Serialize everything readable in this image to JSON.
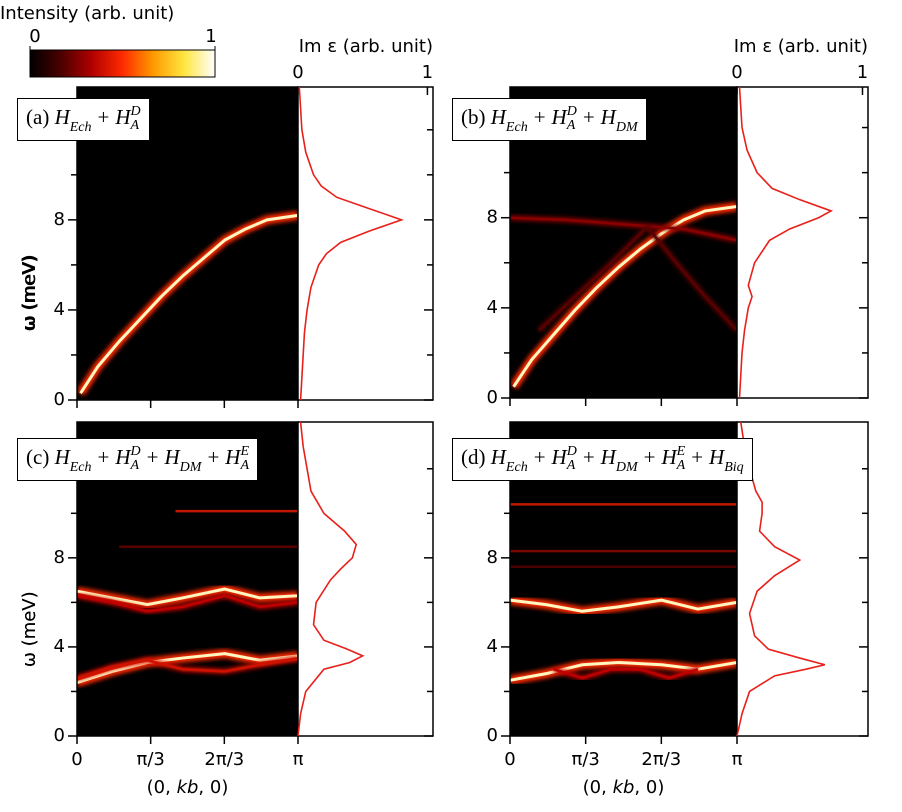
{
  "colorbar": {
    "label": "Intensity (arb. unit)",
    "ticks": [
      0,
      1
    ],
    "colors": [
      "#000000",
      "#4a0000",
      "#b00000",
      "#ff2a00",
      "#ff9a00",
      "#ffe640",
      "#ffffff"
    ]
  },
  "chart_data": [
    {
      "type": "dispersion",
      "label": {
        "tag": "(a)",
        "terms": [
          {
            "t": "H",
            "sub": "Ech"
          },
          "+",
          {
            "t": "H",
            "sub": "A",
            "sup": "D"
          }
        ]
      },
      "ylabel": "ω (meV)",
      "ylim": [
        0,
        13.9
      ],
      "yticks": [
        0,
        4,
        8
      ],
      "yminor": [
        2,
        6,
        10,
        12
      ],
      "xlim": [
        0,
        3.1416
      ],
      "xminor": [
        0,
        1.0472,
        2.0944,
        3.1416
      ],
      "background": "#000000",
      "core_color": "#fff6c0",
      "branches": [
        {
          "x": [
            0.05,
            0.3,
            0.6,
            0.9,
            1.2,
            1.5,
            1.8,
            2.1,
            2.4,
            2.7,
            3.1416
          ],
          "y": [
            0.3,
            1.5,
            2.6,
            3.6,
            4.6,
            5.5,
            6.3,
            7.1,
            7.6,
            8.0,
            8.2
          ],
          "color": "#ff2a00",
          "bright": true
        }
      ],
      "spectrum_label": "Im ε (arb. unit)",
      "spectrum_xlim": [
        0,
        1.02
      ],
      "spectrum_ticks": [
        0,
        1
      ],
      "spectrum_color": "#e8201a",
      "spectrum": {
        "omega": [
          0,
          1,
          2,
          3,
          4,
          5,
          6,
          6.5,
          7,
          7.5,
          8,
          8.5,
          9,
          9.5,
          10,
          11,
          12,
          13.9
        ],
        "values": [
          0.02,
          0.03,
          0.04,
          0.05,
          0.07,
          0.1,
          0.16,
          0.22,
          0.33,
          0.55,
          0.8,
          0.55,
          0.3,
          0.18,
          0.12,
          0.06,
          0.03,
          0.01
        ]
      }
    },
    {
      "type": "dispersion",
      "label": {
        "tag": "(b)",
        "terms": [
          {
            "t": "H",
            "sub": "Ech"
          },
          "+",
          {
            "t": "H",
            "sub": "A",
            "sup": "D"
          },
          "+",
          {
            "t": "H",
            "sub": "DM"
          }
        ]
      },
      "ylabel": "ω (meV)",
      "ylim": [
        0,
        13.8
      ],
      "yticks": [
        0,
        4,
        8
      ],
      "yminor": [
        2,
        6,
        10,
        12
      ],
      "xlim": [
        0,
        3.1416
      ],
      "xminor": [
        0,
        1.0472,
        2.0944,
        3.1416
      ],
      "background": "#000000",
      "core_color": "#fff6c0",
      "branches": [
        {
          "x": [
            0.05,
            0.3,
            0.6,
            0.9,
            1.2,
            1.5,
            1.8,
            2.1,
            2.4,
            2.7,
            3.1416
          ],
          "y": [
            0.5,
            1.7,
            2.8,
            3.9,
            4.9,
            5.8,
            6.6,
            7.3,
            7.9,
            8.3,
            8.5
          ],
          "color": "#ff2a00",
          "bright": true
        },
        {
          "x": [
            0,
            0.8,
            1.6,
            2.4,
            3.1416
          ],
          "y": [
            8.0,
            7.9,
            7.7,
            7.5,
            7.0
          ],
          "color": "#8a0000",
          "bright": false
        },
        {
          "x": [
            1.9,
            2.3,
            2.7,
            3.1416
          ],
          "y": [
            7.6,
            6.0,
            4.5,
            3.0
          ],
          "color": "#5a0000",
          "bright": false
        },
        {
          "x": [
            0.4,
            0.9,
            1.4,
            1.9
          ],
          "y": [
            3.0,
            4.5,
            6.0,
            7.6
          ],
          "color": "#5a0000",
          "bright": false
        }
      ],
      "spectrum_label": "Im ε (arb. unit)",
      "spectrum_xlim": [
        0,
        1.02
      ],
      "spectrum_ticks": [
        0,
        1
      ],
      "spectrum_color": "#e8201a",
      "spectrum": {
        "omega": [
          0,
          1,
          2,
          3,
          4,
          4.5,
          5,
          6,
          7,
          7.5,
          8,
          8.3,
          8.8,
          9.3,
          10,
          11,
          12,
          13.8
        ],
        "values": [
          0.02,
          0.03,
          0.04,
          0.06,
          0.09,
          0.12,
          0.09,
          0.14,
          0.26,
          0.42,
          0.65,
          0.75,
          0.5,
          0.28,
          0.16,
          0.08,
          0.04,
          0.02
        ]
      }
    },
    {
      "type": "dispersion",
      "label": {
        "tag": "(c)",
        "terms": [
          {
            "t": "H",
            "sub": "Ech"
          },
          "+",
          {
            "t": "H",
            "sub": "A",
            "sup": "D"
          },
          "+",
          {
            "t": "H",
            "sub": "DM"
          },
          "+",
          {
            "t": "H",
            "sub": "A",
            "sup": "E"
          }
        ]
      },
      "ylabel": "ω (meV)",
      "ylim": [
        0,
        14.1
      ],
      "yticks": [
        0,
        4,
        8
      ],
      "yminor": [
        2,
        6,
        10,
        12
      ],
      "xlim": [
        0,
        3.1416
      ],
      "xticks": [
        0,
        {
          "value": 1.0472,
          "label": "π/3"
        },
        {
          "value": 2.0944,
          "label": "2π/3"
        },
        {
          "value": 3.1416,
          "label": "π"
        }
      ],
      "xlabel": [
        "(0, ",
        "kb",
        ", 0)"
      ],
      "background": "#000000",
      "core_color": "#fff6c0",
      "branches": [
        {
          "x": [
            0,
            0.5,
            1.0,
            1.5,
            2.1,
            2.6,
            3.1416
          ],
          "y": [
            2.4,
            2.9,
            3.3,
            3.5,
            3.7,
            3.4,
            3.6
          ],
          "color": "#ff2a00",
          "bright": true
        },
        {
          "x": [
            0,
            0.5,
            1.0,
            1.5,
            2.1,
            2.6,
            3.1416
          ],
          "y": [
            2.6,
            3.1,
            3.4,
            3.0,
            2.9,
            3.2,
            3.5
          ],
          "color": "#d01000",
          "bright": false
        },
        {
          "x": [
            0,
            0.5,
            1.0,
            1.5,
            2.1,
            2.6,
            3.1416
          ],
          "y": [
            6.5,
            6.2,
            5.9,
            6.2,
            6.6,
            6.2,
            6.3
          ],
          "color": "#ff2a00",
          "bright": true
        },
        {
          "x": [
            0,
            0.5,
            1.0,
            1.5,
            2.1,
            2.6,
            3.1416
          ],
          "y": [
            6.3,
            6.0,
            5.6,
            5.8,
            6.3,
            5.8,
            6.0
          ],
          "color": "#c00000",
          "bright": false
        },
        {
          "x": [
            1.4,
            2.2,
            3.1416
          ],
          "y": [
            10.1,
            10.1,
            10.1
          ],
          "color": "#c01800",
          "bright": false
        },
        {
          "x": [
            0.6,
            1.8,
            3.1416
          ],
          "y": [
            8.5,
            8.5,
            8.5
          ],
          "color": "#5a0000",
          "bright": false
        }
      ],
      "spectrum_xlim": [
        0,
        1.02
      ],
      "spectrum_color": "#e8201a",
      "spectrum": {
        "omega": [
          0,
          0.5,
          1,
          2,
          3,
          3.3,
          3.6,
          3.9,
          4.3,
          5,
          6,
          7,
          7.5,
          8,
          8.6,
          9.2,
          10,
          11,
          12,
          13,
          14.1
        ],
        "values": [
          0,
          0.01,
          0.02,
          0.06,
          0.2,
          0.4,
          0.5,
          0.38,
          0.2,
          0.12,
          0.14,
          0.25,
          0.33,
          0.42,
          0.45,
          0.36,
          0.2,
          0.1,
          0.07,
          0.04,
          0.02
        ]
      }
    },
    {
      "type": "dispersion",
      "label": {
        "tag": "(d)",
        "terms": [
          {
            "t": "H",
            "sub": "Ech"
          },
          "+",
          {
            "t": "H",
            "sub": "A",
            "sup": "D"
          },
          "+",
          {
            "t": "H",
            "sub": "DM"
          },
          "+",
          {
            "t": "H",
            "sub": "A",
            "sup": "E"
          },
          "+",
          {
            "t": "H",
            "sub": "Biq"
          }
        ]
      },
      "ylabel": "ω (meV)",
      "ylim": [
        0,
        14.1
      ],
      "yticks": [
        0,
        4,
        8
      ],
      "yminor": [
        2,
        6,
        10,
        12
      ],
      "xlim": [
        0,
        3.1416
      ],
      "xticks": [
        0,
        {
          "value": 1.0472,
          "label": "π/3"
        },
        {
          "value": 2.0944,
          "label": "2π/3"
        },
        {
          "value": 3.1416,
          "label": "π"
        }
      ],
      "xlabel": [
        "(0, ",
        "kb",
        ", 0)"
      ],
      "background": "#000000",
      "core_color": "#fff6c0",
      "branches": [
        {
          "x": [
            0,
            0.5,
            1.0,
            1.5,
            2.1,
            2.6,
            3.1416
          ],
          "y": [
            2.5,
            2.8,
            3.2,
            3.3,
            3.2,
            3.0,
            3.3
          ],
          "color": "#ff2a00",
          "bright": true
        },
        {
          "x": [
            0.6,
            1.0,
            1.4,
            1.8,
            2.2,
            2.6
          ],
          "y": [
            3.0,
            2.6,
            3.0,
            3.0,
            2.6,
            3.0
          ],
          "color": "#c00000",
          "bright": false
        },
        {
          "x": [
            0,
            0.5,
            1.0,
            1.5,
            2.1,
            2.6,
            3.1416
          ],
          "y": [
            6.1,
            5.9,
            5.6,
            5.8,
            6.1,
            5.7,
            6.0
          ],
          "color": "#ff2a00",
          "bright": true
        },
        {
          "x": [
            0,
            1.5,
            3.1416
          ],
          "y": [
            10.4,
            10.4,
            10.4
          ],
          "color": "#c01800",
          "bright": false
        },
        {
          "x": [
            0,
            1.5,
            3.1416
          ],
          "y": [
            8.3,
            8.3,
            8.3
          ],
          "color": "#7a0800",
          "bright": false
        },
        {
          "x": [
            0,
            1.5,
            3.1416
          ],
          "y": [
            7.6,
            7.6,
            7.6
          ],
          "color": "#4a0000",
          "bright": false
        }
      ],
      "spectrum_xlim": [
        0,
        1.02
      ],
      "spectrum_color": "#e8201a",
      "spectrum": {
        "omega": [
          0,
          0.5,
          1,
          2,
          2.7,
          3.0,
          3.2,
          3.5,
          3.9,
          4.5,
          5.5,
          6.5,
          7.2,
          7.9,
          8.5,
          9.2,
          10,
          10.5,
          11,
          12,
          13,
          14.1
        ],
        "values": [
          0,
          0.02,
          0.04,
          0.1,
          0.3,
          0.55,
          0.7,
          0.5,
          0.25,
          0.14,
          0.1,
          0.16,
          0.3,
          0.5,
          0.3,
          0.18,
          0.2,
          0.2,
          0.15,
          0.1,
          0.06,
          0.03
        ]
      }
    }
  ]
}
